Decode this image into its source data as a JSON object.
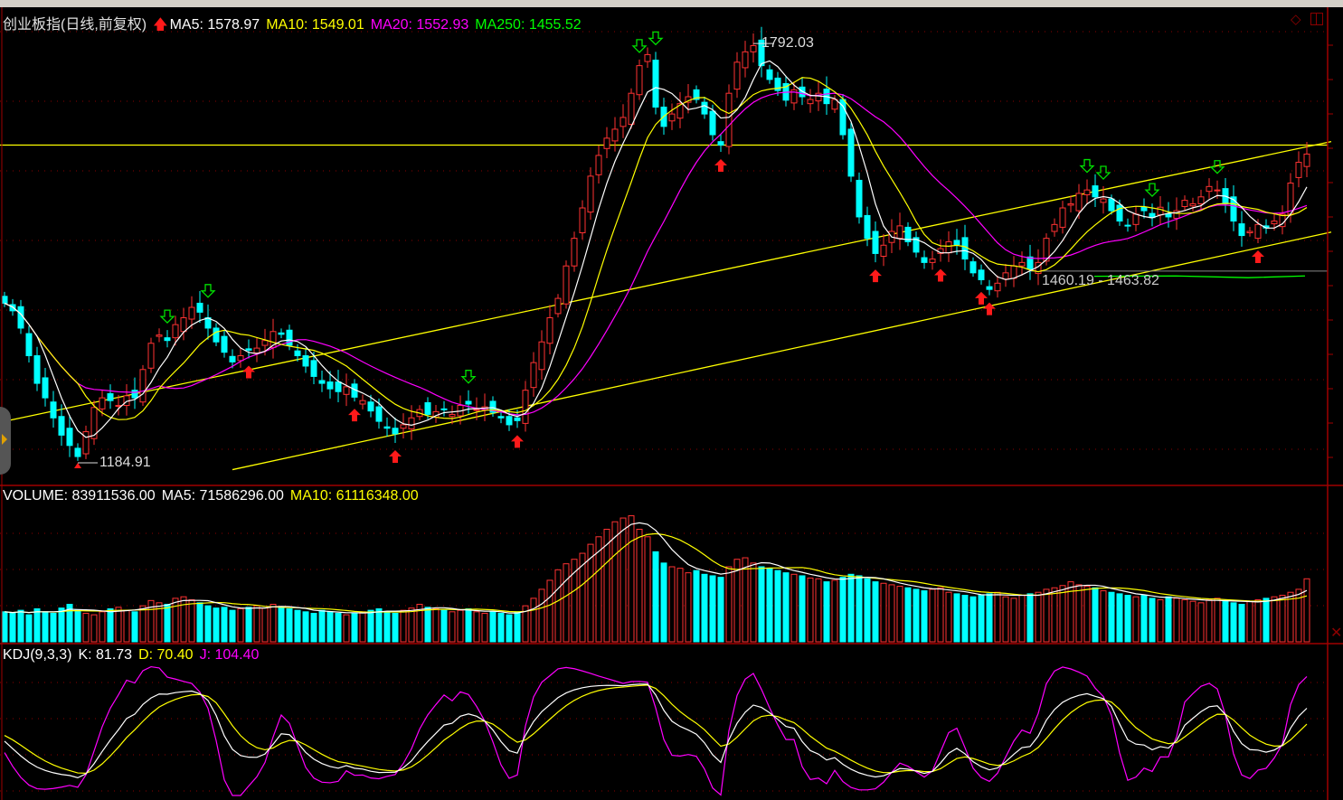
{
  "header": {
    "title": "创业板指(日线,前复权)",
    "ma5": "MA5: 1578.97",
    "ma10": "MA10: 1549.01",
    "ma20": "MA20: 1552.93",
    "ma250": "MA250: 1455.52"
  },
  "volume_header": {
    "volume": "VOLUME: 83911536.00",
    "ma5": "MA5: 71586296.00",
    "ma10": "MA10: 61116348.00"
  },
  "kdj_header": {
    "name": "KDJ(9,3,3)",
    "k": "K: 81.73",
    "d": "D: 70.40",
    "j": "J: 104.40"
  },
  "annotations": {
    "high_label": "1792.03",
    "low_label": "1184.91",
    "range_label": "1460.19 - 1463.82"
  },
  "colors": {
    "up": "#ff3232",
    "down": "#00ffff",
    "ma5": "#ffffff",
    "ma10": "#ffff00",
    "ma20": "#ff00ff",
    "ma250": "#00ff00",
    "grid": "#8b0000",
    "trendline": "#ffff00"
  },
  "icons": {
    "up_arrow": "red-up-arrow-icon",
    "down_arrow": "green-down-arrow-icon"
  },
  "chart_data": {
    "type": "candlestick",
    "price_range": [
      1170,
      1830
    ],
    "close": [
      1416,
      1405,
      1380,
      1340,
      1300,
      1279,
      1250,
      1225,
      1210,
      1194,
      1230,
      1265,
      1279,
      1275,
      1268,
      1282,
      1279,
      1320,
      1358,
      1370,
      1362,
      1385,
      1395,
      1410,
      1403,
      1380,
      1360,
      1345,
      1331,
      1340,
      1348,
      1351,
      1362,
      1375,
      1371,
      1355,
      1340,
      1325,
      1310,
      1300,
      1292,
      1288,
      1295,
      1280,
      1275,
      1260,
      1245,
      1235,
      1227,
      1240,
      1250,
      1262,
      1255,
      1259,
      1262,
      1255,
      1268,
      1270,
      1262,
      1266,
      1258,
      1250,
      1240,
      1246,
      1290,
      1330,
      1360,
      1395,
      1423,
      1470,
      1510,
      1554,
      1600,
      1630,
      1655,
      1668,
      1685,
      1720,
      1760,
      1776,
      1700,
      1672,
      1690,
      1705,
      1715,
      1711,
      1690,
      1660,
      1645,
      1720,
      1765,
      1780,
      1789,
      1760,
      1740,
      1724,
      1710,
      1725,
      1715,
      1711,
      1720,
      1705,
      1711,
      1660,
      1600,
      1541,
      1510,
      1488,
      1500,
      1520,
      1528,
      1505,
      1490,
      1475,
      1480,
      1495,
      1505,
      1501,
      1480,
      1460,
      1450,
      1436,
      1445,
      1460,
      1470,
      1475,
      1465,
      1475,
      1510,
      1530,
      1554,
      1560,
      1575,
      1580,
      1570,
      1567,
      1550,
      1535,
      1528,
      1545,
      1550,
      1540,
      1555,
      1541,
      1550,
      1565,
      1560,
      1570,
      1585,
      1580,
      1560,
      1535,
      1514,
      1520,
      1530,
      1525,
      1535,
      1545,
      1590,
      1620,
      1632
    ],
    "volume_millions": [
      40,
      38,
      42,
      36,
      44,
      40,
      38,
      45,
      50,
      42,
      38,
      36,
      40,
      44,
      46,
      42,
      40,
      48,
      55,
      52,
      50,
      58,
      60,
      56,
      52,
      48,
      45,
      46,
      42,
      44,
      46,
      48,
      45,
      50,
      47,
      44,
      42,
      40,
      38,
      42,
      40,
      38,
      36,
      38,
      40,
      42,
      44,
      40,
      38,
      42,
      45,
      50,
      46,
      44,
      42,
      40,
      42,
      44,
      40,
      38,
      40,
      38,
      36,
      40,
      48,
      58,
      70,
      82,
      96,
      104,
      110,
      118,
      130,
      140,
      150,
      160,
      165,
      168,
      150,
      140,
      120,
      105,
      100,
      98,
      92,
      95,
      90,
      88,
      86,
      100,
      110,
      112,
      105,
      100,
      98,
      95,
      92,
      90,
      88,
      85,
      84,
      80,
      82,
      86,
      90,
      88,
      84,
      80,
      78,
      76,
      74,
      72,
      70,
      68,
      70,
      72,
      66,
      64,
      62,
      60,
      62,
      64,
      66,
      60,
      58,
      62,
      64,
      66,
      70,
      72,
      75,
      80,
      76,
      74,
      72,
      68,
      66,
      64,
      62,
      60,
      62,
      58,
      56,
      60,
      58,
      56,
      54,
      52,
      56,
      58,
      54,
      52,
      50,
      54,
      56,
      58,
      60,
      62,
      66,
      70,
      84
    ],
    "high_point": 1792.03,
    "low_point": 1184.91,
    "horizontal_line": 1645,
    "range_line": [
      1460.19,
      1463.82
    ],
    "trendlines": [
      {
        "from": [
          0,
          1245
        ],
        "to": [
          163,
          1650
        ]
      },
      {
        "from": [
          28,
          1175
        ],
        "to": [
          163,
          1519
        ]
      }
    ],
    "buy_signals": [
      30,
      43,
      48,
      63,
      88,
      107,
      115,
      120,
      121,
      154
    ],
    "sell_signals": [
      20,
      25,
      57,
      78,
      80,
      133,
      135,
      141,
      149
    ],
    "indicators": [
      "MA5",
      "MA10",
      "MA20",
      "MA250",
      "VOLUME MA5",
      "VOLUME MA10",
      "KDJ(9,3,3)"
    ]
  }
}
